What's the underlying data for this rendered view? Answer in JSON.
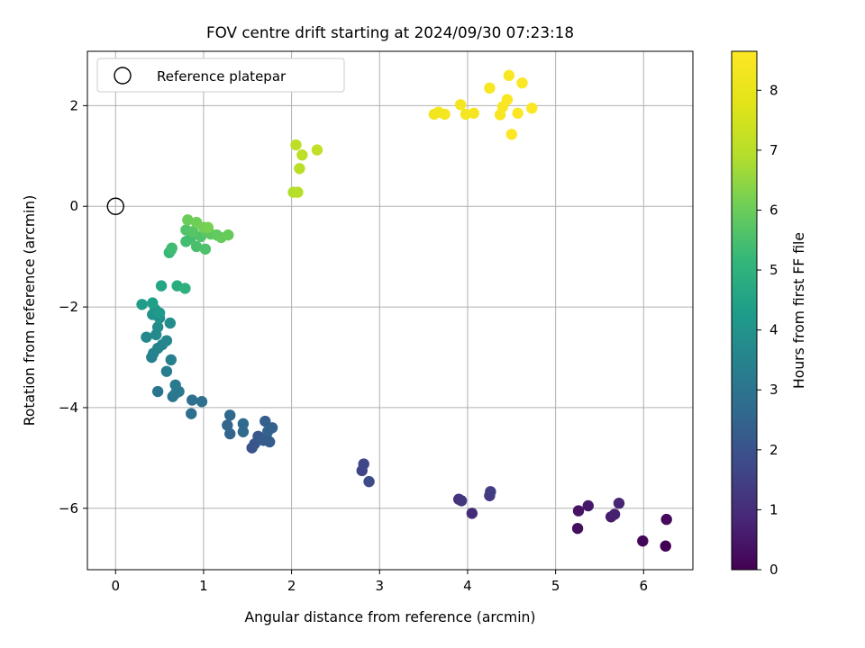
{
  "chart_data": {
    "type": "scatter",
    "title": "FOV centre drift starting at 2024/09/30 07:23:18",
    "xlabel": "Angular distance from reference (arcmin)",
    "ylabel": "Rotation from reference (arcmin)",
    "xlim": [
      -0.32,
      6.56
    ],
    "ylim": [
      -7.22,
      3.08
    ],
    "xticks": [
      0,
      1,
      2,
      3,
      4,
      5,
      6
    ],
    "yticks": [
      -6,
      -4,
      -2,
      0,
      2
    ],
    "grid": true,
    "legend": {
      "placement": "upper-left",
      "entries": [
        "Reference platepar"
      ]
    },
    "reference_point": {
      "x": 0,
      "y": 0
    },
    "colorbar": {
      "label": "Hours from first FF file",
      "range": [
        0,
        8.65
      ],
      "ticks": [
        0,
        1,
        2,
        3,
        4,
        5,
        6,
        7,
        8
      ],
      "colormap": "viridis"
    },
    "points": [
      {
        "x": 6.25,
        "y": -6.75,
        "h": 0.0
      },
      {
        "x": 5.99,
        "y": -6.65,
        "h": 0.1
      },
      {
        "x": 6.26,
        "y": -6.22,
        "h": 0.2
      },
      {
        "x": 5.25,
        "y": -6.4,
        "h": 0.3
      },
      {
        "x": 5.26,
        "y": -6.05,
        "h": 0.4
      },
      {
        "x": 5.37,
        "y": -5.95,
        "h": 0.5
      },
      {
        "x": 5.63,
        "y": -6.17,
        "h": 0.6
      },
      {
        "x": 5.67,
        "y": -6.12,
        "h": 0.7
      },
      {
        "x": 5.72,
        "y": -5.9,
        "h": 0.8
      },
      {
        "x": 4.05,
        "y": -6.1,
        "h": 1.0
      },
      {
        "x": 3.9,
        "y": -5.82,
        "h": 1.1
      },
      {
        "x": 3.93,
        "y": -5.85,
        "h": 1.2
      },
      {
        "x": 4.25,
        "y": -5.75,
        "h": 1.3
      },
      {
        "x": 4.26,
        "y": -5.67,
        "h": 1.4
      },
      {
        "x": 2.8,
        "y": -5.25,
        "h": 1.6
      },
      {
        "x": 2.82,
        "y": -5.12,
        "h": 1.7
      },
      {
        "x": 2.88,
        "y": -5.47,
        "h": 1.8
      },
      {
        "x": 1.55,
        "y": -4.8,
        "h": 2.0
      },
      {
        "x": 1.58,
        "y": -4.72,
        "h": 2.1
      },
      {
        "x": 1.62,
        "y": -4.57,
        "h": 2.15
      },
      {
        "x": 1.68,
        "y": -4.65,
        "h": 2.2
      },
      {
        "x": 1.72,
        "y": -4.62,
        "h": 2.25
      },
      {
        "x": 1.75,
        "y": -4.68,
        "h": 2.3
      },
      {
        "x": 1.7,
        "y": -4.27,
        "h": 2.35
      },
      {
        "x": 1.78,
        "y": -4.4,
        "h": 2.4
      },
      {
        "x": 1.73,
        "y": -4.47,
        "h": 2.45
      },
      {
        "x": 1.3,
        "y": -4.52,
        "h": 2.5
      },
      {
        "x": 1.27,
        "y": -4.35,
        "h": 2.55
      },
      {
        "x": 1.3,
        "y": -4.15,
        "h": 2.6
      },
      {
        "x": 1.45,
        "y": -4.32,
        "h": 2.65
      },
      {
        "x": 1.45,
        "y": -4.48,
        "h": 2.7
      },
      {
        "x": 0.86,
        "y": -4.12,
        "h": 2.8
      },
      {
        "x": 0.87,
        "y": -3.85,
        "h": 2.85
      },
      {
        "x": 0.98,
        "y": -3.88,
        "h": 2.9
      },
      {
        "x": 0.48,
        "y": -3.68,
        "h": 3.0
      },
      {
        "x": 0.65,
        "y": -3.78,
        "h": 3.05
      },
      {
        "x": 0.68,
        "y": -3.72,
        "h": 3.1
      },
      {
        "x": 0.72,
        "y": -3.68,
        "h": 3.15
      },
      {
        "x": 0.68,
        "y": -3.55,
        "h": 3.2
      },
      {
        "x": 0.58,
        "y": -3.28,
        "h": 3.3
      },
      {
        "x": 0.63,
        "y": -3.05,
        "h": 3.35
      },
      {
        "x": 0.41,
        "y": -3.0,
        "h": 3.4
      },
      {
        "x": 0.43,
        "y": -2.92,
        "h": 3.45
      },
      {
        "x": 0.48,
        "y": -2.82,
        "h": 3.5
      },
      {
        "x": 0.53,
        "y": -2.75,
        "h": 3.55
      },
      {
        "x": 0.58,
        "y": -2.67,
        "h": 3.6
      },
      {
        "x": 0.35,
        "y": -2.6,
        "h": 3.65
      },
      {
        "x": 0.46,
        "y": -2.55,
        "h": 3.7
      },
      {
        "x": 0.48,
        "y": -2.4,
        "h": 3.75
      },
      {
        "x": 0.62,
        "y": -2.32,
        "h": 3.8
      },
      {
        "x": 0.5,
        "y": -2.22,
        "h": 3.9
      },
      {
        "x": 0.42,
        "y": -2.15,
        "h": 4.0
      },
      {
        "x": 0.45,
        "y": -2.05,
        "h": 4.1
      },
      {
        "x": 0.5,
        "y": -2.12,
        "h": 4.2
      },
      {
        "x": 0.3,
        "y": -1.95,
        "h": 4.3
      },
      {
        "x": 0.42,
        "y": -1.92,
        "h": 4.4
      },
      {
        "x": 0.52,
        "y": -1.58,
        "h": 4.6
      },
      {
        "x": 0.7,
        "y": -1.58,
        "h": 4.8
      },
      {
        "x": 0.79,
        "y": -1.63,
        "h": 4.9
      },
      {
        "x": 0.61,
        "y": -0.92,
        "h": 5.2
      },
      {
        "x": 0.63,
        "y": -0.87,
        "h": 5.3
      },
      {
        "x": 0.64,
        "y": -0.83,
        "h": 5.35
      },
      {
        "x": 0.8,
        "y": -0.7,
        "h": 5.4
      },
      {
        "x": 0.85,
        "y": -0.65,
        "h": 5.45
      },
      {
        "x": 0.92,
        "y": -0.8,
        "h": 5.5
      },
      {
        "x": 1.02,
        "y": -0.85,
        "h": 5.55
      },
      {
        "x": 0.97,
        "y": -0.6,
        "h": 5.6
      },
      {
        "x": 0.8,
        "y": -0.47,
        "h": 5.65
      },
      {
        "x": 0.88,
        "y": -0.5,
        "h": 5.7
      },
      {
        "x": 1.02,
        "y": -0.5,
        "h": 5.75
      },
      {
        "x": 1.08,
        "y": -0.55,
        "h": 5.8
      },
      {
        "x": 1.15,
        "y": -0.57,
        "h": 5.85
      },
      {
        "x": 1.2,
        "y": -0.62,
        "h": 5.9
      },
      {
        "x": 1.28,
        "y": -0.57,
        "h": 5.95
      },
      {
        "x": 0.82,
        "y": -0.27,
        "h": 6.0
      },
      {
        "x": 0.92,
        "y": -0.32,
        "h": 6.05
      },
      {
        "x": 1.0,
        "y": -0.42,
        "h": 6.1
      },
      {
        "x": 1.05,
        "y": -0.42,
        "h": 6.15
      },
      {
        "x": 2.02,
        "y": 0.28,
        "h": 6.9
      },
      {
        "x": 2.07,
        "y": 0.28,
        "h": 6.95
      },
      {
        "x": 2.09,
        "y": 0.75,
        "h": 7.0
      },
      {
        "x": 2.12,
        "y": 1.02,
        "h": 7.05
      },
      {
        "x": 2.05,
        "y": 1.22,
        "h": 7.1
      },
      {
        "x": 2.29,
        "y": 1.12,
        "h": 7.15
      },
      {
        "x": 3.62,
        "y": 1.83,
        "h": 8.3
      },
      {
        "x": 3.67,
        "y": 1.87,
        "h": 8.32
      },
      {
        "x": 3.74,
        "y": 1.83,
        "h": 8.35
      },
      {
        "x": 3.92,
        "y": 2.02,
        "h": 8.37
      },
      {
        "x": 3.98,
        "y": 1.83,
        "h": 8.4
      },
      {
        "x": 4.07,
        "y": 1.85,
        "h": 8.42
      },
      {
        "x": 4.25,
        "y": 2.35,
        "h": 8.45
      },
      {
        "x": 4.37,
        "y": 1.82,
        "h": 8.47
      },
      {
        "x": 4.4,
        "y": 1.98,
        "h": 8.5
      },
      {
        "x": 4.45,
        "y": 2.12,
        "h": 8.52
      },
      {
        "x": 4.47,
        "y": 2.6,
        "h": 8.55
      },
      {
        "x": 4.5,
        "y": 1.43,
        "h": 8.57
      },
      {
        "x": 4.57,
        "y": 1.85,
        "h": 8.6
      },
      {
        "x": 4.62,
        "y": 2.45,
        "h": 8.62
      },
      {
        "x": 4.73,
        "y": 1.95,
        "h": 8.65
      }
    ]
  }
}
